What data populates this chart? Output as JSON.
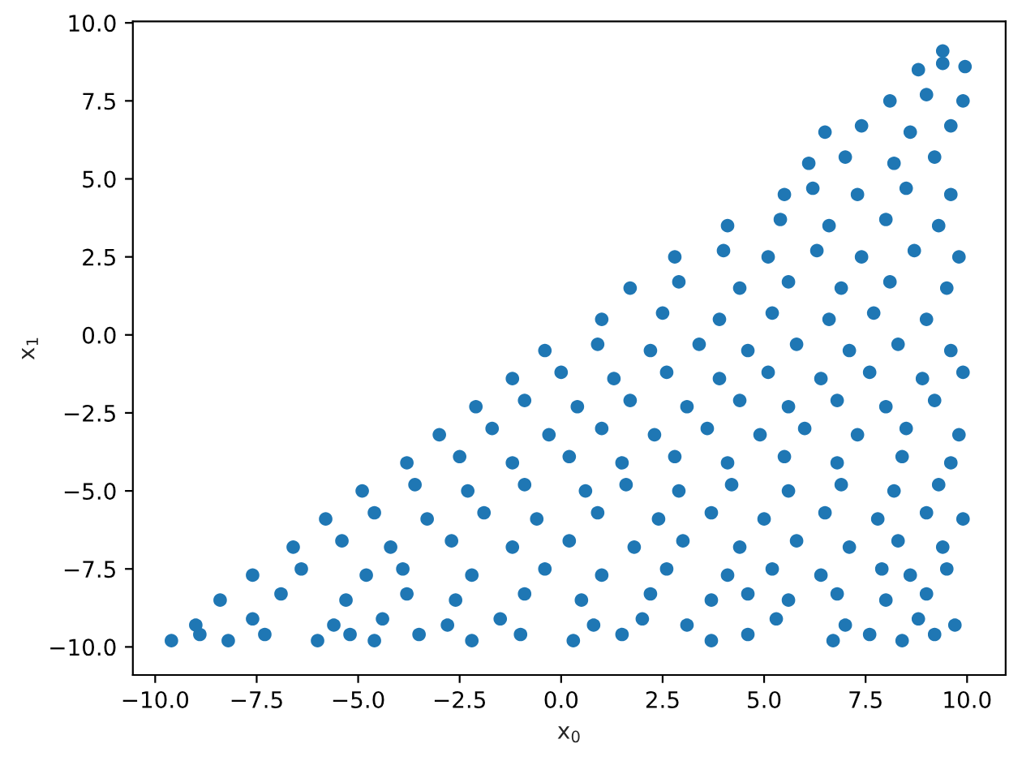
{
  "chart_data": {
    "type": "scatter",
    "xlabel": "x$_{0}$",
    "ylabel": "x$_{1}$",
    "xlim": [
      -10.55,
      10.95
    ],
    "ylim": [
      -10.9,
      10.05
    ],
    "xticks": [
      {
        "value": -10,
        "label": "−10.0"
      },
      {
        "value": -7.5,
        "label": "−7.5"
      },
      {
        "value": -5,
        "label": "−5.0"
      },
      {
        "value": -2.5,
        "label": "−2.5"
      },
      {
        "value": 0,
        "label": "0.0"
      },
      {
        "value": 2.5,
        "label": "2.5"
      },
      {
        "value": 5,
        "label": "5.0"
      },
      {
        "value": 7.5,
        "label": "7.5"
      },
      {
        "value": 10,
        "label": "10.0"
      }
    ],
    "yticks": [
      {
        "value": -10,
        "label": "−10.0"
      },
      {
        "value": -7.5,
        "label": "−7.5"
      },
      {
        "value": -5,
        "label": "−5.0"
      },
      {
        "value": -2.5,
        "label": "−2.5"
      },
      {
        "value": 0,
        "label": "0.0"
      },
      {
        "value": 2.5,
        "label": "2.5"
      },
      {
        "value": 5,
        "label": "5.0"
      },
      {
        "value": 7.5,
        "label": "7.5"
      },
      {
        "value": 10,
        "label": "10.0"
      }
    ],
    "grid": false,
    "marker": "circle",
    "series": [
      {
        "color": "#1f77b4",
        "x": [
          -9.6,
          -8.9,
          -8.2,
          -7.3,
          -6.0,
          -5.2,
          -4.6,
          -3.5,
          -2.2,
          -1.0,
          0.3,
          1.5,
          3.7,
          4.6,
          6.7,
          7.6,
          8.4,
          9.2,
          -9.0,
          -7.6,
          -5.6,
          -4.4,
          -2.8,
          -1.5,
          0.8,
          2.0,
          3.1,
          5.3,
          7.0,
          8.8,
          9.7,
          -8.4,
          -6.9,
          -5.3,
          -3.8,
          -2.6,
          -0.9,
          0.5,
          2.2,
          3.7,
          4.6,
          5.6,
          6.8,
          8.0,
          9.0,
          -7.6,
          -6.4,
          -4.8,
          -3.9,
          -2.2,
          -0.4,
          1.0,
          2.6,
          4.1,
          5.2,
          6.4,
          7.9,
          8.6,
          9.5,
          -6.6,
          -5.4,
          -4.2,
          -2.7,
          -1.2,
          0.2,
          1.8,
          3.0,
          4.4,
          5.8,
          7.1,
          8.3,
          9.4,
          -5.8,
          -4.6,
          -3.3,
          -1.9,
          -0.6,
          0.9,
          2.4,
          3.7,
          5.0,
          6.5,
          7.8,
          9.0,
          9.9,
          -4.9,
          -3.6,
          -2.3,
          -0.9,
          0.6,
          1.6,
          2.9,
          4.2,
          5.6,
          6.9,
          8.2,
          9.3,
          -3.8,
          -2.5,
          -1.2,
          0.2,
          1.5,
          2.8,
          4.1,
          5.5,
          6.8,
          8.4,
          9.6,
          -3.0,
          -1.7,
          -0.3,
          1.0,
          2.3,
          3.6,
          4.9,
          6.0,
          7.3,
          8.5,
          9.8,
          -2.1,
          -0.9,
          0.4,
          1.7,
          3.1,
          4.4,
          5.6,
          6.8,
          8.0,
          9.2,
          -1.2,
          0.0,
          1.3,
          2.6,
          3.9,
          5.1,
          6.4,
          7.6,
          8.9,
          9.9,
          -0.4,
          0.9,
          2.2,
          3.4,
          4.6,
          5.8,
          7.1,
          8.3,
          9.6,
          1.0,
          2.5,
          3.9,
          5.2,
          6.6,
          7.7,
          9.0,
          1.7,
          2.9,
          4.4,
          5.6,
          6.9,
          8.1,
          9.5,
          2.8,
          4.0,
          5.1,
          6.3,
          7.4,
          8.7,
          9.8,
          4.1,
          5.4,
          6.6,
          8.0,
          9.3,
          5.5,
          6.2,
          7.3,
          8.5,
          9.6,
          6.1,
          7.0,
          8.2,
          9.2,
          6.5,
          7.4,
          8.6,
          9.6,
          8.1,
          9.0,
          9.9,
          8.8,
          9.4,
          9.95,
          9.4
        ],
        "values": [
          -9.8,
          -9.6,
          -9.8,
          -9.6,
          -9.8,
          -9.6,
          -9.8,
          -9.6,
          -9.8,
          -9.6,
          -9.8,
          -9.6,
          -9.8,
          -9.6,
          -9.8,
          -9.6,
          -9.8,
          -9.6,
          -9.3,
          -9.1,
          -9.3,
          -9.1,
          -9.3,
          -9.1,
          -9.3,
          -9.1,
          -9.3,
          -9.1,
          -9.3,
          -9.1,
          -9.3,
          -8.5,
          -8.3,
          -8.5,
          -8.3,
          -8.5,
          -8.3,
          -8.5,
          -8.3,
          -8.5,
          -8.3,
          -8.5,
          -8.3,
          -8.5,
          -8.3,
          -7.7,
          -7.5,
          -7.7,
          -7.5,
          -7.7,
          -7.5,
          -7.7,
          -7.5,
          -7.7,
          -7.5,
          -7.7,
          -7.5,
          -7.7,
          -7.5,
          -6.8,
          -6.6,
          -6.8,
          -6.6,
          -6.8,
          -6.6,
          -6.8,
          -6.6,
          -6.8,
          -6.6,
          -6.8,
          -6.6,
          -6.8,
          -5.9,
          -5.7,
          -5.9,
          -5.7,
          -5.9,
          -5.7,
          -5.9,
          -5.7,
          -5.9,
          -5.7,
          -5.9,
          -5.7,
          -5.9,
          -5.0,
          -4.8,
          -5.0,
          -4.8,
          -5.0,
          -4.8,
          -5.0,
          -4.8,
          -5.0,
          -4.8,
          -5.0,
          -4.8,
          -4.1,
          -3.9,
          -4.1,
          -3.9,
          -4.1,
          -3.9,
          -4.1,
          -3.9,
          -4.1,
          -3.9,
          -4.1,
          -3.2,
          -3.0,
          -3.2,
          -3.0,
          -3.2,
          -3.0,
          -3.2,
          -3.0,
          -3.2,
          -3.0,
          -3.2,
          -2.3,
          -2.1,
          -2.3,
          -2.1,
          -2.3,
          -2.1,
          -2.3,
          -2.1,
          -2.3,
          -2.1,
          -1.4,
          -1.2,
          -1.4,
          -1.2,
          -1.4,
          -1.2,
          -1.4,
          -1.2,
          -1.4,
          -1.2,
          -0.5,
          -0.3,
          -0.5,
          -0.3,
          -0.5,
          -0.3,
          -0.5,
          -0.3,
          -0.5,
          0.5,
          0.7,
          0.5,
          0.7,
          0.5,
          0.7,
          0.5,
          1.5,
          1.7,
          1.5,
          1.7,
          1.5,
          1.7,
          1.5,
          2.5,
          2.7,
          2.5,
          2.7,
          2.5,
          2.7,
          2.5,
          3.5,
          3.7,
          3.5,
          3.7,
          3.5,
          4.5,
          4.7,
          4.5,
          4.7,
          4.5,
          5.5,
          5.7,
          5.5,
          5.7,
          6.5,
          6.7,
          6.5,
          6.7,
          7.5,
          7.7,
          7.5,
          8.5,
          8.7,
          8.6,
          9.1
        ]
      }
    ]
  }
}
